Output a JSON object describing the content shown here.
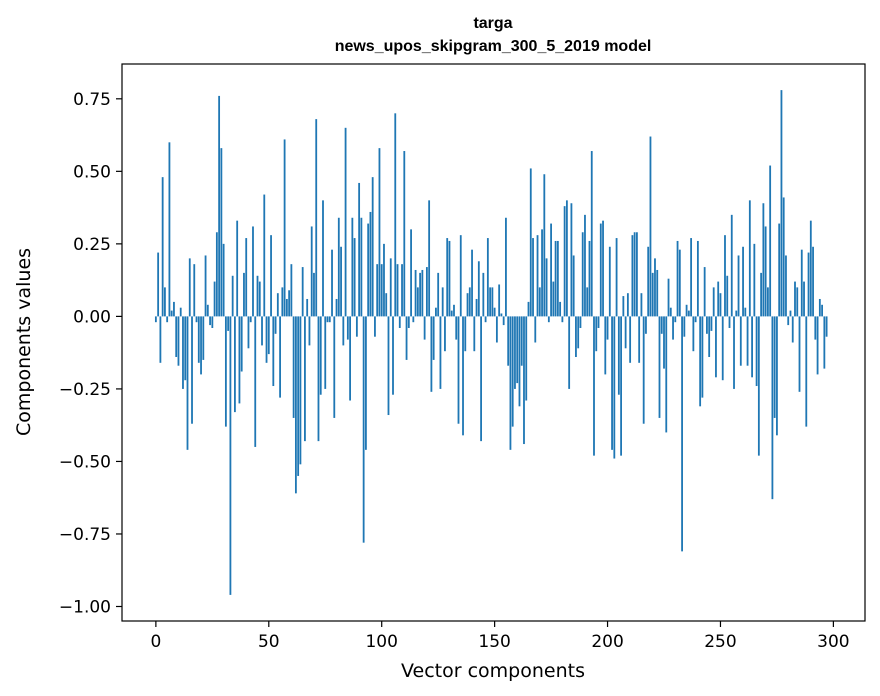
{
  "chart_data": {
    "type": "bar",
    "title_line1": "targa",
    "title_line2": "news_upos_skipgram_300_5_2019 model",
    "xlabel": "Vector components",
    "ylabel": "Components values",
    "xlim": [
      -15,
      314
    ],
    "ylim": [
      -1.05,
      0.87
    ],
    "xticks": [
      0,
      50,
      100,
      150,
      200,
      250,
      300
    ],
    "xtick_labels": [
      "0",
      "50",
      "100",
      "150",
      "200",
      "250",
      "300"
    ],
    "yticks": [
      0.75,
      0.5,
      0.25,
      0.0,
      -0.25,
      -0.5,
      -0.75,
      -1.0
    ],
    "ytick_labels": [
      "0.75",
      "0.50",
      "0.25",
      "0.00",
      "−0.25",
      "−0.50",
      "−0.75",
      "−1.00"
    ],
    "bar_color": "#1f77b4",
    "categories_note": "component index 0-299",
    "values": [
      -0.02,
      0.22,
      -0.16,
      0.48,
      0.1,
      -0.02,
      0.6,
      0.02,
      0.05,
      -0.14,
      -0.17,
      0.03,
      -0.25,
      -0.22,
      -0.46,
      0.2,
      -0.37,
      0.18,
      -0.02,
      -0.16,
      -0.2,
      -0.15,
      0.21,
      0.04,
      -0.03,
      -0.04,
      0.12,
      0.29,
      0.76,
      0.58,
      0.25,
      -0.38,
      -0.05,
      -0.96,
      0.14,
      -0.33,
      0.33,
      -0.3,
      -0.19,
      0.15,
      0.27,
      -0.11,
      -0.02,
      0.31,
      -0.45,
      0.14,
      0.12,
      -0.1,
      0.42,
      -0.16,
      -0.13,
      0.28,
      -0.24,
      -0.06,
      0.08,
      -0.28,
      0.1,
      0.61,
      0.06,
      0.09,
      0.18,
      -0.35,
      -0.61,
      -0.55,
      -0.51,
      0.17,
      -0.43,
      0.06,
      -0.1,
      0.31,
      0.15,
      0.68,
      -0.43,
      -0.27,
      0.4,
      -0.25,
      -0.02,
      -0.02,
      0.23,
      -0.35,
      0.06,
      0.34,
      0.24,
      -0.1,
      0.65,
      -0.08,
      -0.29,
      0.34,
      0.27,
      -0.07,
      0.46,
      0.34,
      -0.78,
      -0.46,
      0.32,
      0.36,
      0.48,
      -0.07,
      0.18,
      0.58,
      0.18,
      0.25,
      0.08,
      -0.34,
      0.2,
      -0.27,
      0.7,
      0.18,
      -0.04,
      0.18,
      0.57,
      -0.15,
      -0.04,
      0.3,
      -0.02,
      0.16,
      0.1,
      0.15,
      0.16,
      -0.08,
      0.17,
      0.4,
      -0.26,
      -0.15,
      0.03,
      0.15,
      -0.25,
      0.1,
      -0.12,
      0.27,
      0.26,
      0.02,
      0.04,
      -0.08,
      -0.37,
      0.28,
      -0.41,
      -0.12,
      0.08,
      0.1,
      0.23,
      -0.12,
      0.06,
      0.19,
      -0.43,
      0.15,
      -0.02,
      0.27,
      0.1,
      0.1,
      0.03,
      -0.09,
      0.11,
      0.01,
      -0.03,
      0.34,
      -0.17,
      -0.46,
      -0.38,
      -0.25,
      -0.23,
      -0.31,
      -0.17,
      -0.44,
      -0.29,
      0.05,
      0.51,
      0.27,
      -0.09,
      0.28,
      0.1,
      0.3,
      0.49,
      0.2,
      -0.02,
      0.32,
      0.12,
      0.26,
      0.26,
      0.05,
      -0.02,
      0.38,
      0.4,
      -0.25,
      0.39,
      0.21,
      -0.14,
      -0.11,
      -0.04,
      0.29,
      0.35,
      0.1,
      0.26,
      0.57,
      -0.48,
      -0.12,
      -0.04,
      0.32,
      0.33,
      -0.2,
      -0.08,
      0.24,
      -0.46,
      -0.49,
      0.27,
      -0.27,
      -0.48,
      0.07,
      -0.11,
      0.08,
      -0.16,
      0.28,
      0.29,
      0.29,
      -0.16,
      0.08,
      -0.37,
      -0.06,
      0.24,
      0.62,
      0.15,
      0.2,
      0.16,
      -0.35,
      -0.06,
      -0.18,
      -0.4,
      0.13,
      0.03,
      -0.08,
      -0.02,
      0.26,
      0.23,
      -0.81,
      -0.07,
      0.04,
      0.02,
      0.27,
      -0.12,
      -0.02,
      0.26,
      -0.31,
      -0.28,
      0.17,
      -0.06,
      -0.14,
      -0.05,
      0.1,
      -0.21,
      0.12,
      0.08,
      -0.22,
      0.28,
      0.14,
      -0.04,
      0.35,
      -0.25,
      0.02,
      0.21,
      -0.17,
      0.24,
      0.03,
      -0.17,
      0.4,
      -0.21,
      0.25,
      -0.24,
      -0.48,
      0.15,
      0.39,
      0.31,
      0.1,
      0.52,
      -0.63,
      -0.35,
      -0.41,
      0.32,
      0.78,
      0.41,
      0.21,
      -0.03,
      0.02,
      -0.09,
      0.12,
      0.1,
      -0.26,
      0.23,
      0.12,
      -0.38,
      0.22,
      0.33,
      0.24,
      -0.08,
      -0.2,
      0.06,
      0.04,
      -0.18,
      -0.07
    ]
  }
}
